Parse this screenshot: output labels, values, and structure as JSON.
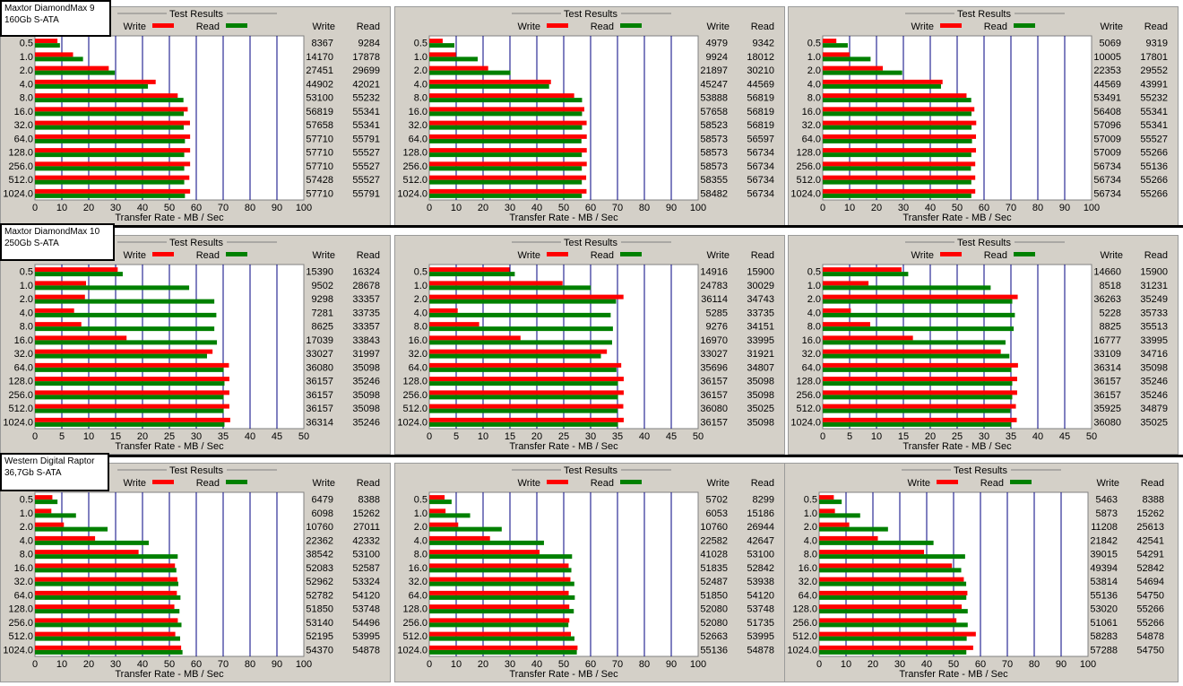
{
  "chart_data": [
    {
      "type": "bar",
      "title": "Test Results",
      "xlabel": "Transfer Rate - MB / Sec",
      "xlim": [
        0,
        100
      ],
      "xticks": [
        0,
        10,
        20,
        30,
        40,
        50,
        60,
        70,
        80,
        90,
        100
      ],
      "categories": [
        "0.5",
        "1.0",
        "2.0",
        "4.0",
        "8.0",
        "16.0",
        "32.0",
        "64.0",
        "128.0",
        "256.0",
        "512.0",
        "1024.0"
      ],
      "series": [
        {
          "name": "Write",
          "color": "#ff0000",
          "values": [
            8367,
            14170,
            27451,
            44902,
            53100,
            56819,
            57658,
            57710,
            57710,
            57710,
            57428,
            57710
          ]
        },
        {
          "name": "Read",
          "color": "#008000",
          "values": [
            9284,
            17878,
            29699,
            42021,
            55232,
            55341,
            55341,
            55791,
            55527,
            55527,
            55527,
            55791
          ]
        }
      ]
    },
    {
      "type": "bar",
      "title": "Test Results",
      "xlabel": "Transfer Rate - MB / Sec",
      "xlim": [
        0,
        100
      ],
      "xticks": [
        0,
        10,
        20,
        30,
        40,
        50,
        60,
        70,
        80,
        90,
        100
      ],
      "categories": [
        "0.5",
        "1.0",
        "2.0",
        "4.0",
        "8.0",
        "16.0",
        "32.0",
        "64.0",
        "128.0",
        "256.0",
        "512.0",
        "1024.0"
      ],
      "series": [
        {
          "name": "Write",
          "color": "#ff0000",
          "values": [
            4979,
            9924,
            21897,
            45247,
            53888,
            57658,
            58523,
            58573,
            58573,
            58573,
            58355,
            58482
          ]
        },
        {
          "name": "Read",
          "color": "#008000",
          "values": [
            9342,
            18012,
            30210,
            44569,
            56819,
            56819,
            56819,
            56597,
            56734,
            56734,
            56734,
            56734
          ]
        }
      ]
    },
    {
      "type": "bar",
      "title": "Test Results",
      "xlabel": "Transfer Rate - MB / Sec",
      "xlim": [
        0,
        100
      ],
      "xticks": [
        0,
        10,
        20,
        30,
        40,
        50,
        60,
        70,
        80,
        90,
        100
      ],
      "categories": [
        "0.5",
        "1.0",
        "2.0",
        "4.0",
        "8.0",
        "16.0",
        "32.0",
        "64.0",
        "128.0",
        "256.0",
        "512.0",
        "1024.0"
      ],
      "series": [
        {
          "name": "Write",
          "color": "#ff0000",
          "values": [
            5069,
            10005,
            22353,
            44569,
            53491,
            56408,
            57096,
            57009,
            57009,
            56734,
            56734,
            56734
          ]
        },
        {
          "name": "Read",
          "color": "#008000",
          "values": [
            9319,
            17801,
            29552,
            43991,
            55232,
            55341,
            55341,
            55527,
            55266,
            55136,
            55266,
            55266
          ]
        }
      ]
    },
    {
      "type": "bar",
      "title": "Test Results",
      "xlabel": "Transfer Rate - MB / Sec",
      "xlim": [
        0,
        50
      ],
      "xticks": [
        0,
        5,
        10,
        15,
        20,
        25,
        30,
        35,
        40,
        45,
        50
      ],
      "categories": [
        "0.5",
        "1.0",
        "2.0",
        "4.0",
        "8.0",
        "16.0",
        "32.0",
        "64.0",
        "128.0",
        "256.0",
        "512.0",
        "1024.0"
      ],
      "series": [
        {
          "name": "Write",
          "color": "#ff0000",
          "values": [
            15390,
            9502,
            9298,
            7281,
            8625,
            17039,
            33027,
            36080,
            36157,
            36157,
            36157,
            36314
          ]
        },
        {
          "name": "Read",
          "color": "#008000",
          "values": [
            16324,
            28678,
            33357,
            33735,
            33357,
            33843,
            31997,
            35098,
            35246,
            35098,
            35098,
            35246
          ]
        }
      ]
    },
    {
      "type": "bar",
      "title": "Test Results",
      "xlabel": "Transfer Rate - MB / Sec",
      "xlim": [
        0,
        50
      ],
      "xticks": [
        0,
        5,
        10,
        15,
        20,
        25,
        30,
        35,
        40,
        45,
        50
      ],
      "categories": [
        "0.5",
        "1.0",
        "2.0",
        "4.0",
        "8.0",
        "16.0",
        "32.0",
        "64.0",
        "128.0",
        "256.0",
        "512.0",
        "1024.0"
      ],
      "series": [
        {
          "name": "Write",
          "color": "#ff0000",
          "values": [
            14916,
            24783,
            36114,
            5285,
            9276,
            16970,
            33027,
            35696,
            36157,
            36157,
            36080,
            36157
          ]
        },
        {
          "name": "Read",
          "color": "#008000",
          "values": [
            15900,
            30029,
            34743,
            33735,
            34151,
            33995,
            31921,
            34807,
            35098,
            35098,
            35025,
            35098
          ]
        }
      ]
    },
    {
      "type": "bar",
      "title": "Test Results",
      "xlabel": "Transfer Rate - MB / Sec",
      "xlim": [
        0,
        50
      ],
      "xticks": [
        0,
        5,
        10,
        15,
        20,
        25,
        30,
        35,
        40,
        45,
        50
      ],
      "categories": [
        "0.5",
        "1.0",
        "2.0",
        "4.0",
        "8.0",
        "16.0",
        "32.0",
        "64.0",
        "128.0",
        "256.0",
        "512.0",
        "1024.0"
      ],
      "series": [
        {
          "name": "Write",
          "color": "#ff0000",
          "values": [
            14660,
            8518,
            36263,
            5228,
            8825,
            16777,
            33109,
            36314,
            36157,
            36157,
            35925,
            36080
          ]
        },
        {
          "name": "Read",
          "color": "#008000",
          "values": [
            15900,
            31231,
            35249,
            35733,
            35513,
            33995,
            34716,
            35098,
            35246,
            35246,
            34879,
            35025
          ]
        }
      ]
    },
    {
      "type": "bar",
      "title": "Test Results",
      "xlabel": "Transfer Rate - MB / Sec",
      "xlim": [
        0,
        100
      ],
      "xticks": [
        0,
        10,
        20,
        30,
        40,
        50,
        60,
        70,
        80,
        90,
        100
      ],
      "categories": [
        "0.5",
        "1.0",
        "2.0",
        "4.0",
        "8.0",
        "16.0",
        "32.0",
        "64.0",
        "128.0",
        "256.0",
        "512.0",
        "1024.0"
      ],
      "series": [
        {
          "name": "Write",
          "color": "#ff0000",
          "values": [
            6479,
            6098,
            10760,
            22362,
            38542,
            52083,
            52962,
            52782,
            51850,
            53140,
            52195,
            54370
          ]
        },
        {
          "name": "Read",
          "color": "#008000",
          "values": [
            8388,
            15262,
            27011,
            42332,
            53100,
            52587,
            53324,
            54120,
            53748,
            54496,
            53995,
            54878
          ]
        }
      ]
    },
    {
      "type": "bar",
      "title": "Test Results",
      "xlabel": "Transfer Rate - MB / Sec",
      "xlim": [
        0,
        100
      ],
      "xticks": [
        0,
        10,
        20,
        30,
        40,
        50,
        60,
        70,
        80,
        90,
        100
      ],
      "categories": [
        "0.5",
        "1.0",
        "2.0",
        "4.0",
        "8.0",
        "16.0",
        "32.0",
        "64.0",
        "128.0",
        "256.0",
        "512.0",
        "1024.0"
      ],
      "series": [
        {
          "name": "Write",
          "color": "#ff0000",
          "values": [
            5702,
            6053,
            10760,
            22582,
            41028,
            51835,
            52487,
            51850,
            52080,
            52080,
            52663,
            55136
          ]
        },
        {
          "name": "Read",
          "color": "#008000",
          "values": [
            8299,
            15186,
            26944,
            42647,
            53100,
            52842,
            53938,
            54120,
            53748,
            51735,
            53995,
            54878
          ]
        }
      ]
    },
    {
      "type": "bar",
      "title": "Test Results",
      "xlabel": "Transfer Rate - MB / Sec",
      "xlim": [
        0,
        100
      ],
      "xticks": [
        0,
        10,
        20,
        30,
        40,
        50,
        60,
        70,
        80,
        90,
        100
      ],
      "categories": [
        "0.5",
        "1.0",
        "2.0",
        "4.0",
        "8.0",
        "16.0",
        "32.0",
        "64.0",
        "128.0",
        "256.0",
        "512.0",
        "1024.0"
      ],
      "series": [
        {
          "name": "Write",
          "color": "#ff0000",
          "values": [
            5463,
            5873,
            11208,
            21842,
            39015,
            49394,
            53814,
            55136,
            53020,
            51061,
            58283,
            57288
          ]
        },
        {
          "name": "Read",
          "color": "#008000",
          "values": [
            8388,
            15262,
            25613,
            42541,
            54291,
            52842,
            54694,
            54750,
            55266,
            55266,
            54878,
            54750
          ]
        }
      ]
    }
  ],
  "drives": [
    {
      "name": "Maxtor DiamondMax 9",
      "spec": "160Gb S-ATA"
    },
    {
      "name": "Maxtor DiamondMax 10",
      "spec": "250Gb S-ATA"
    },
    {
      "name": "Western Digital Raptor",
      "spec": "36,7Gb S-ATA"
    }
  ]
}
